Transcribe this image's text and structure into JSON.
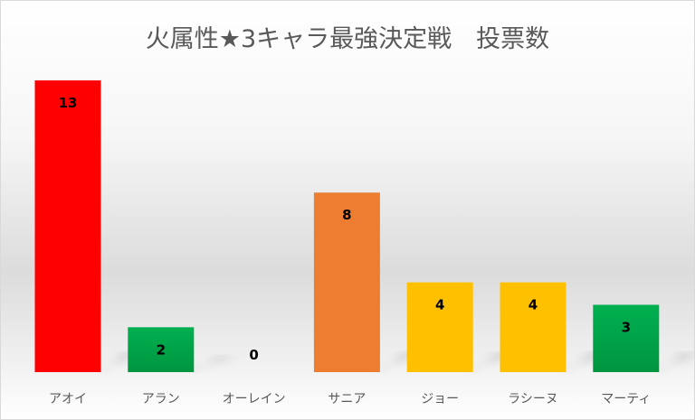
{
  "chart_data": {
    "type": "bar",
    "title": "火属性★3キャラ最強決定戦　投票数",
    "categories": [
      "アオイ",
      "アラン",
      "オーレイン",
      "サニア",
      "ジョー",
      "ラシーヌ",
      "マーティ"
    ],
    "values": [
      13,
      2,
      0,
      8,
      4,
      4,
      3
    ],
    "colors": [
      "#ff0000",
      "#00b050",
      "#00b050",
      "#ed7d31",
      "#ffc000",
      "#ffc000",
      "#00b050"
    ],
    "data_labels": true,
    "ylim": [
      0,
      13
    ],
    "grid": false,
    "legend": "none"
  }
}
